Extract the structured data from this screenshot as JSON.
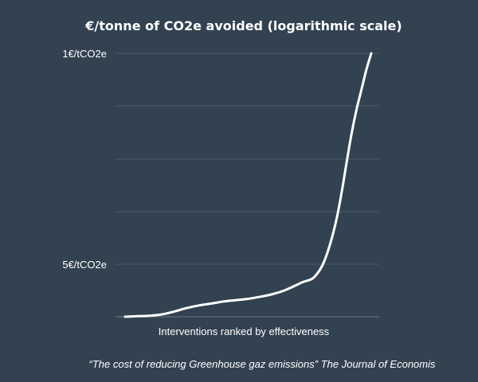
{
  "chart_data": {
    "type": "line",
    "title": "€/tonne of CO2e avoided (logarithmic scale)",
    "xlabel": "Interventions ranked by effectiveness",
    "ylabel": "",
    "yscale": "log",
    "grid": true,
    "y_ticks": [
      {
        "label": "1€/tCO2e",
        "level": 1.0
      },
      {
        "label": "5€/tCO2e",
        "level": 0.2
      }
    ],
    "x": [
      0,
      0.05,
      0.1,
      0.15,
      0.2,
      0.25,
      0.3,
      0.35,
      0.4,
      0.45,
      0.5,
      0.55,
      0.6,
      0.65,
      0.7,
      0.72,
      0.74,
      0.76,
      0.78,
      0.8,
      0.82,
      0.84,
      0.86,
      0.88,
      0.9,
      0.92,
      0.94,
      0.96,
      0.98,
      1.0
    ],
    "y": [
      0.0,
      0.002,
      0.004,
      0.009,
      0.02,
      0.033,
      0.043,
      0.05,
      0.058,
      0.063,
      0.068,
      0.076,
      0.086,
      0.101,
      0.122,
      0.131,
      0.137,
      0.144,
      0.163,
      0.192,
      0.238,
      0.299,
      0.375,
      0.473,
      0.586,
      0.695,
      0.786,
      0.861,
      0.937,
      1.0
    ]
  },
  "source": "“The cost of  reducing Greenhouse gaz emissions” The Journal of Economis"
}
